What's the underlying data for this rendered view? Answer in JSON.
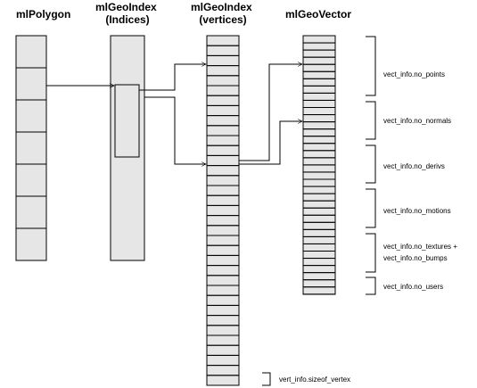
{
  "headers": {
    "polygon": [
      "mlPolygon"
    ],
    "geoindex_indices": [
      "mlGeoIndex",
      "(Indices)"
    ],
    "geoindex_vertices": [
      "mlGeoIndex",
      "(vertices)"
    ],
    "geovector": [
      "mlGeoVector"
    ]
  },
  "annotations": {
    "no_points": "vect_info.no_points",
    "no_normals": "vect_info.no_normals",
    "no_derivs": "vect_info.no_derivs",
    "no_motions": "vect_info.no_motions",
    "no_textures": "vect_info.no_textures +",
    "no_bumps": "vect_info.no_bumps",
    "no_users": "vect_info.no_users",
    "sizeof_vertex": "vert_info.sizeof_vertex"
  },
  "colors": {
    "column_fill": "#e6e6e6",
    "line": "#000000",
    "background": "#ffffff"
  }
}
